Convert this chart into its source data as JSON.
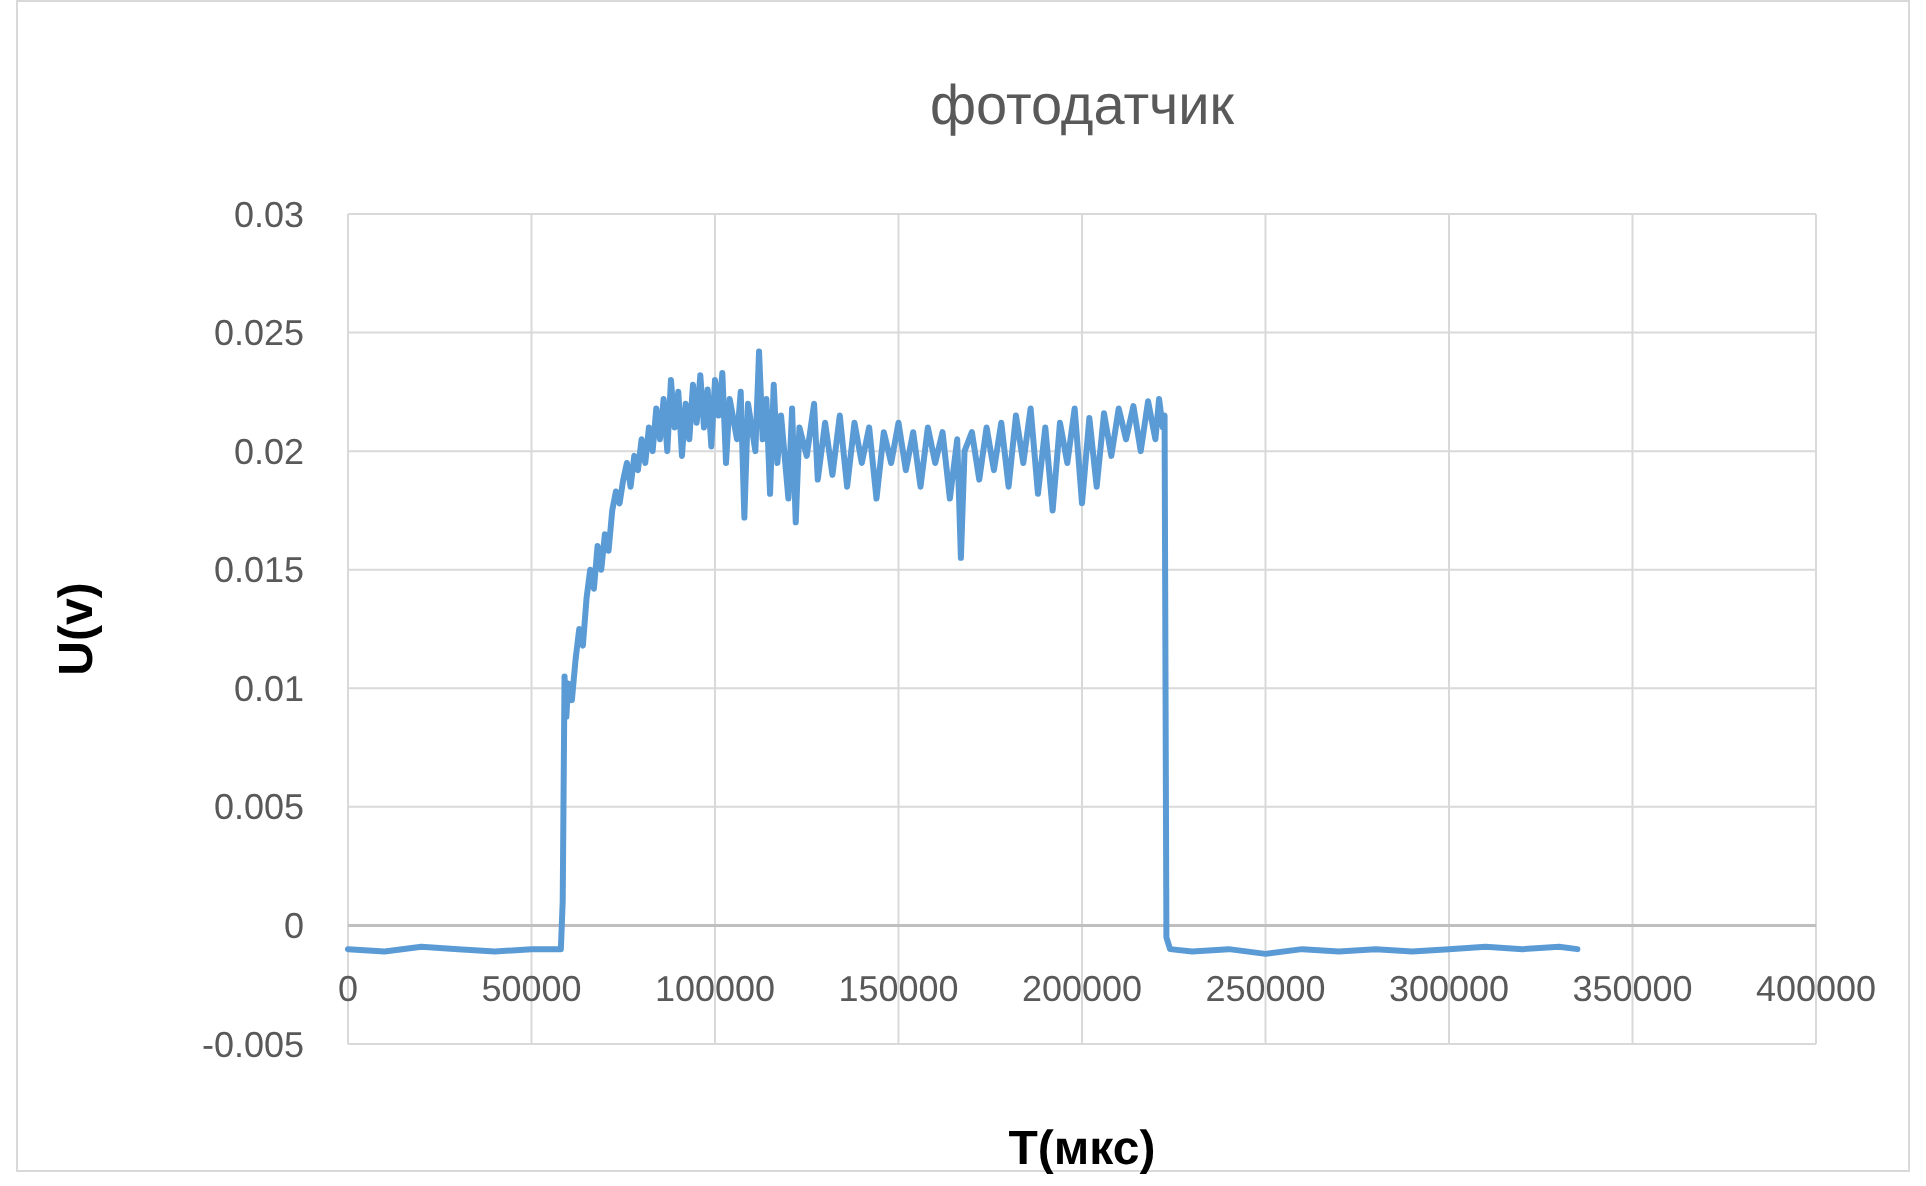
{
  "chart_data": {
    "type": "line",
    "title": "фотодатчик",
    "xlabel": "T(мкс)",
    "ylabel": "U(v)",
    "xlim": [
      0,
      400000
    ],
    "xticks": [
      0,
      50000,
      100000,
      150000,
      200000,
      250000,
      300000,
      350000,
      400000
    ],
    "ylim": [
      -0.005,
      0.03
    ],
    "yticks": [
      -0.005,
      0,
      0.005,
      0.01,
      0.015,
      0.02,
      0.025,
      0.03
    ],
    "grid": true,
    "marker": "none",
    "line_style": "solid",
    "series": [
      {
        "color": "#5b9bd5",
        "x": [
          0,
          10000,
          20000,
          30000,
          40000,
          50000,
          58000,
          58500,
          59000,
          59500,
          60000,
          61000,
          62000,
          63000,
          64000,
          65000,
          66000,
          67000,
          68000,
          69000,
          70000,
          71000,
          72000,
          73000,
          74000,
          75000,
          76000,
          77000,
          78000,
          79000,
          80000,
          81000,
          82000,
          83000,
          84000,
          85000,
          86000,
          87000,
          88000,
          89000,
          90000,
          91000,
          92000,
          93000,
          94000,
          95000,
          96000,
          97000,
          98000,
          99000,
          100000,
          101000,
          102000,
          103000,
          104000,
          106000,
          107000,
          108000,
          109000,
          111000,
          112000,
          113000,
          114000,
          115000,
          116000,
          117000,
          118000,
          120000,
          121000,
          122000,
          123000,
          125000,
          127000,
          128000,
          130000,
          132000,
          134000,
          136000,
          138000,
          140000,
          142000,
          144000,
          146000,
          148000,
          150000,
          152000,
          154000,
          156000,
          158000,
          160000,
          162000,
          164000,
          166000,
          167000,
          168000,
          170000,
          172000,
          174000,
          176000,
          178000,
          180000,
          182000,
          184000,
          186000,
          188000,
          190000,
          192000,
          194000,
          196000,
          198000,
          200000,
          202000,
          204000,
          206000,
          208000,
          210000,
          212000,
          214000,
          216000,
          218000,
          220000,
          221000,
          222000,
          222500,
          223000,
          224000,
          230000,
          240000,
          250000,
          260000,
          270000,
          280000,
          290000,
          300000,
          310000,
          320000,
          330000,
          335000
        ],
        "values": [
          -0.001,
          -0.0011,
          -0.0009,
          -0.001,
          -0.0011,
          -0.001,
          -0.001,
          0.001,
          0.0105,
          0.0088,
          0.0102,
          0.0095,
          0.0112,
          0.0125,
          0.0118,
          0.0138,
          0.015,
          0.0142,
          0.016,
          0.015,
          0.0165,
          0.0158,
          0.0175,
          0.0183,
          0.0178,
          0.0188,
          0.0195,
          0.0185,
          0.0198,
          0.0192,
          0.0205,
          0.0195,
          0.021,
          0.02,
          0.0218,
          0.0205,
          0.0222,
          0.02,
          0.023,
          0.021,
          0.0225,
          0.0198,
          0.022,
          0.0205,
          0.0228,
          0.0212,
          0.0232,
          0.021,
          0.0226,
          0.0202,
          0.023,
          0.0215,
          0.0233,
          0.0195,
          0.0222,
          0.0205,
          0.0225,
          0.0172,
          0.022,
          0.02,
          0.0242,
          0.0205,
          0.0222,
          0.0182,
          0.0228,
          0.0195,
          0.0215,
          0.018,
          0.0218,
          0.017,
          0.021,
          0.0198,
          0.022,
          0.0188,
          0.0212,
          0.019,
          0.0215,
          0.0185,
          0.0212,
          0.0195,
          0.021,
          0.018,
          0.0208,
          0.0195,
          0.0212,
          0.0192,
          0.0208,
          0.0185,
          0.021,
          0.0195,
          0.0208,
          0.018,
          0.0205,
          0.0155,
          0.02,
          0.0208,
          0.0188,
          0.021,
          0.0192,
          0.0212,
          0.0185,
          0.0215,
          0.0195,
          0.0218,
          0.0182,
          0.021,
          0.0175,
          0.0212,
          0.0195,
          0.0218,
          0.0178,
          0.0214,
          0.0185,
          0.0216,
          0.0198,
          0.0218,
          0.0205,
          0.0219,
          0.02,
          0.0221,
          0.0205,
          0.0222,
          0.021,
          0.0215,
          -0.0005,
          -0.001,
          -0.0011,
          -0.001,
          -0.0012,
          -0.001,
          -0.0011,
          -0.001,
          -0.0011,
          -0.001,
          -0.0009,
          -0.001,
          -0.0009,
          -0.001
        ]
      }
    ]
  }
}
